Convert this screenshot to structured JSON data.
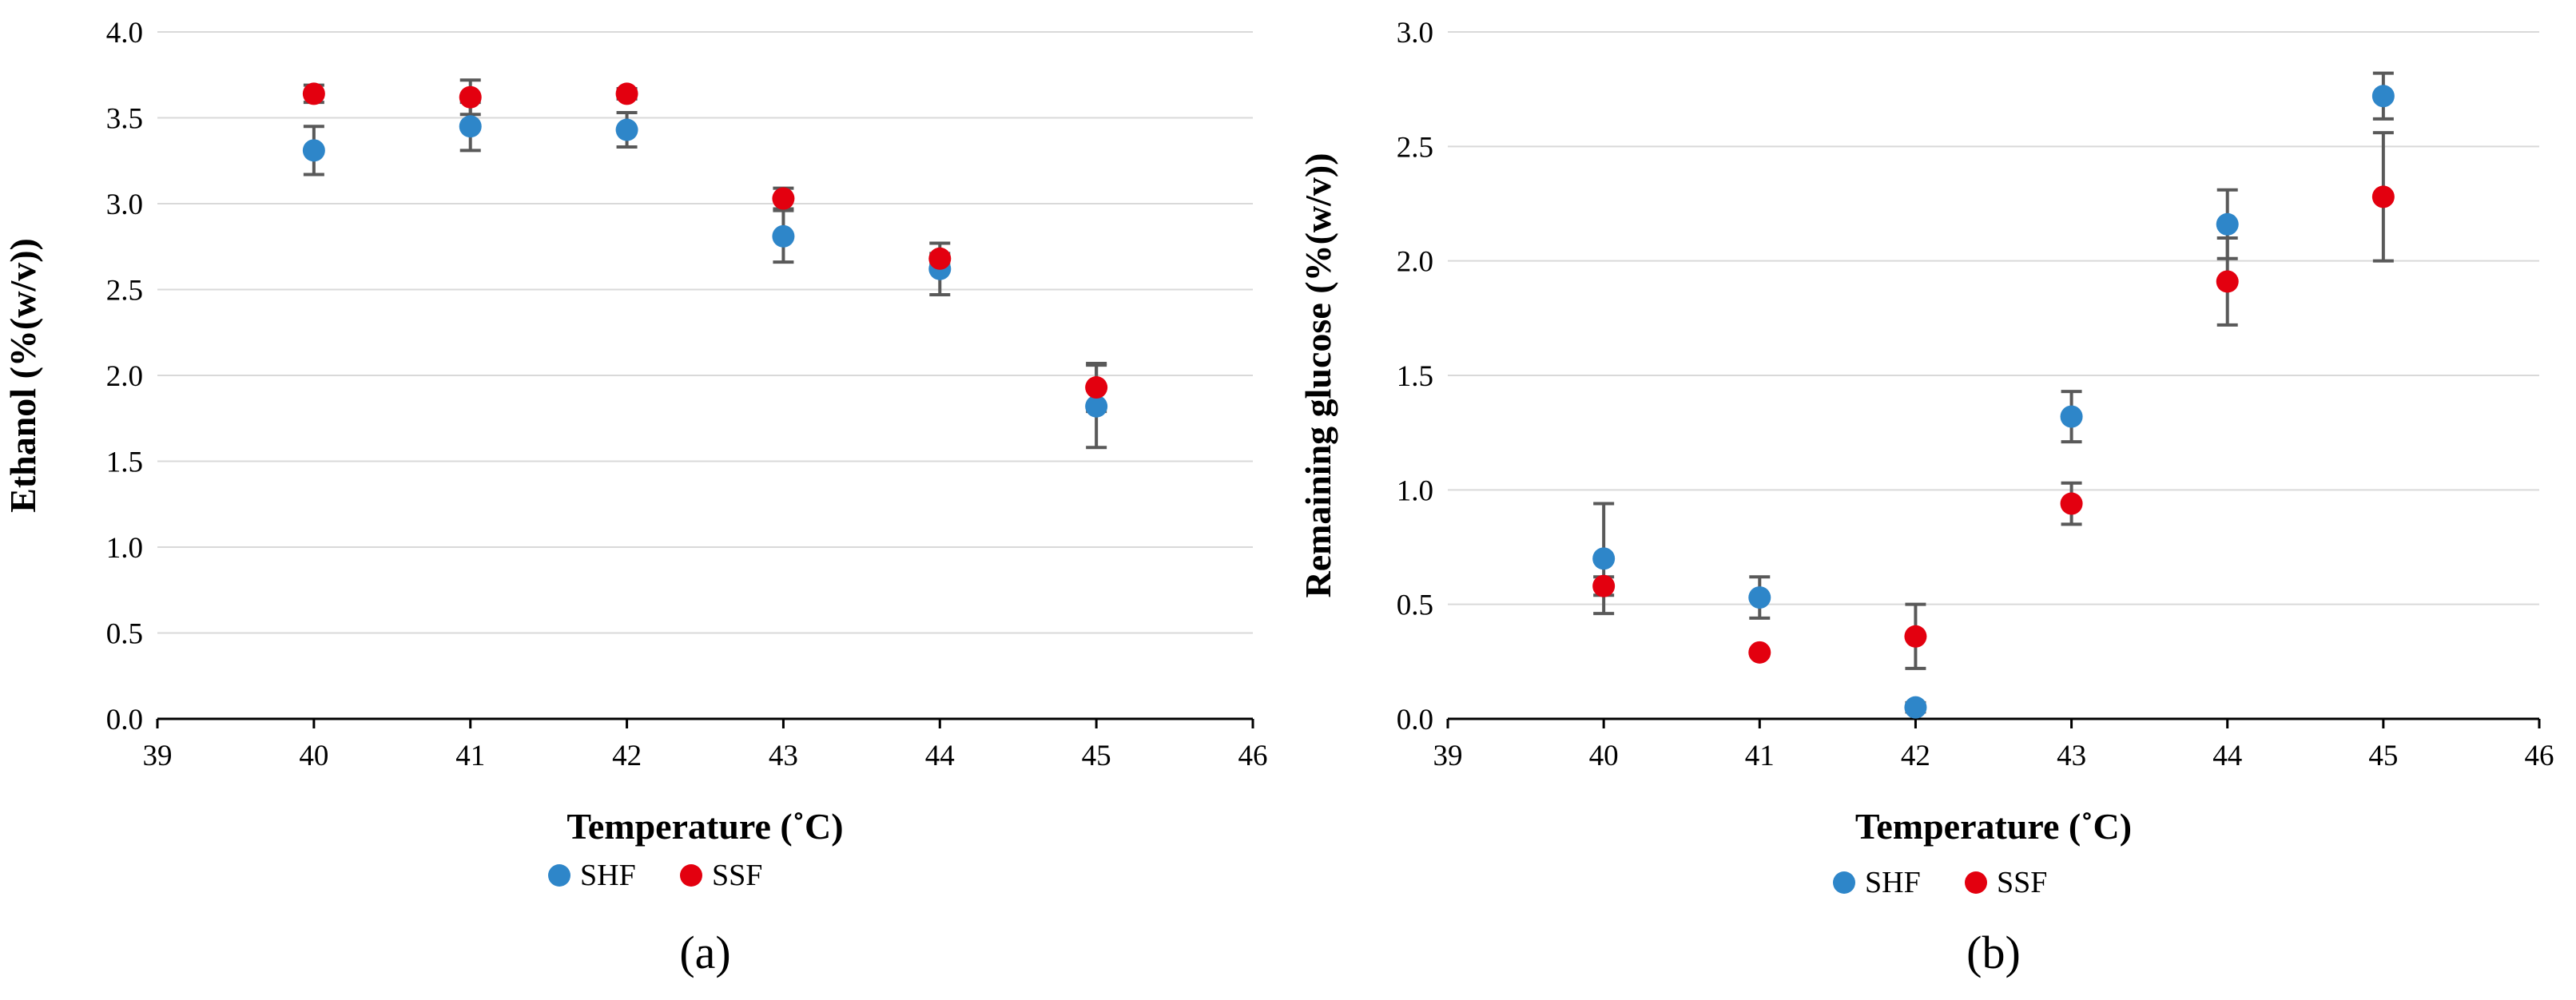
{
  "chart_data": [
    {
      "type": "scatter",
      "panel_label": "(a)",
      "title": "",
      "xlabel": "Temperature (˚C)",
      "ylabel": "Ethanol (%(w/v))",
      "xlim": [
        39,
        46
      ],
      "ylim": [
        0.0,
        4.0
      ],
      "x_ticks": [
        "39",
        "40",
        "41",
        "42",
        "43",
        "44",
        "45",
        "46"
      ],
      "y_ticks": [
        "0.0",
        "0.5",
        "1.0",
        "1.5",
        "2.0",
        "2.5",
        "3.0",
        "3.5",
        "4.0"
      ],
      "grid": "horizontal",
      "legend_position": "bottom",
      "series": [
        {
          "name": "SHF",
          "color": "#2E86C9",
          "x": [
            40,
            41,
            42,
            43,
            44,
            45
          ],
          "y": [
            3.31,
            3.45,
            3.43,
            2.81,
            2.62,
            1.82
          ],
          "err": [
            0.14,
            0.14,
            0.1,
            0.15,
            0.15,
            0.24
          ]
        },
        {
          "name": "SSF",
          "color": "#E3000F",
          "x": [
            40,
            41,
            42,
            43,
            44,
            45
          ],
          "y": [
            3.64,
            3.62,
            3.64,
            3.03,
            2.68,
            1.93
          ],
          "err": [
            0.05,
            0.1,
            0.03,
            0.06,
            0.03,
            0.14
          ]
        }
      ]
    },
    {
      "type": "scatter",
      "panel_label": "(b)",
      "title": "",
      "xlabel": "Temperature (˚C)",
      "ylabel": "Remaining glucose (%(w/v))",
      "xlim": [
        39,
        46
      ],
      "ylim": [
        0.0,
        3.0
      ],
      "x_ticks": [
        "39",
        "40",
        "41",
        "42",
        "43",
        "44",
        "45",
        "46"
      ],
      "y_ticks": [
        "0.0",
        "0.5",
        "1.0",
        "1.5",
        "2.0",
        "2.5",
        "3.0"
      ],
      "grid": "horizontal",
      "legend_position": "bottom",
      "series": [
        {
          "name": "SHF",
          "color": "#2E86C9",
          "x": [
            40,
            41,
            42,
            43,
            44,
            45
          ],
          "y": [
            0.7,
            0.53,
            0.05,
            1.32,
            2.16,
            2.72
          ],
          "err": [
            0.24,
            0.09,
            0.02,
            0.11,
            0.15,
            0.1
          ]
        },
        {
          "name": "SSF",
          "color": "#E3000F",
          "x": [
            40,
            41,
            42,
            43,
            44,
            45
          ],
          "y": [
            0.58,
            0.29,
            0.36,
            0.94,
            1.91,
            2.28
          ],
          "err": [
            0.04,
            0.01,
            0.14,
            0.09,
            0.19,
            0.28
          ]
        }
      ]
    }
  ]
}
